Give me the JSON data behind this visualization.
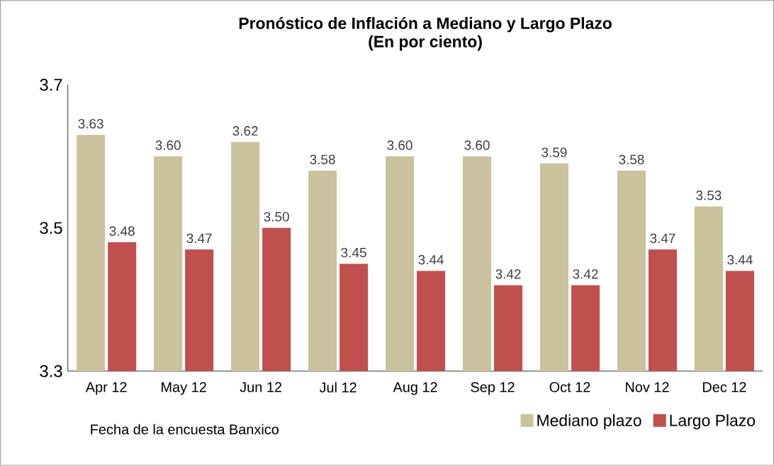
{
  "chart_data": {
    "type": "bar",
    "title": "Pronóstico de Inflación  a Mediano  y Largo  Plazo",
    "subtitle": "(En por ciento)",
    "xlabel": "Fecha de la encuesta Banxico",
    "categories": [
      "Apr 12",
      "May 12",
      "Jun 12",
      "Jul 12",
      "Aug 12",
      "Sep 12",
      "Oct 12",
      "Nov 12",
      "Dec 12"
    ],
    "series": [
      {
        "name": "Mediano plazo",
        "color": "#c9c29d",
        "values": [
          3.63,
          3.6,
          3.62,
          3.58,
          3.6,
          3.6,
          3.59,
          3.58,
          3.53
        ],
        "value_labels": [
          "3.63",
          "3.60",
          "3.62",
          "3.58",
          "3.60",
          "3.60",
          "3.59",
          "3.58",
          "3.53"
        ]
      },
      {
        "name": "Largo Plazo",
        "color": "#c0504d",
        "values": [
          3.48,
          3.47,
          3.5,
          3.45,
          3.44,
          3.42,
          3.42,
          3.47,
          3.44
        ],
        "value_labels": [
          "3.48",
          "3.47",
          "3.50",
          "3.45",
          "3.44",
          "3.42",
          "3.42",
          "3.47",
          "3.44"
        ]
      }
    ],
    "ylim": [
      3.3,
      3.7
    ],
    "yticks": [
      3.3,
      3.5,
      3.7
    ],
    "grid": false,
    "legend": "bottom right"
  }
}
